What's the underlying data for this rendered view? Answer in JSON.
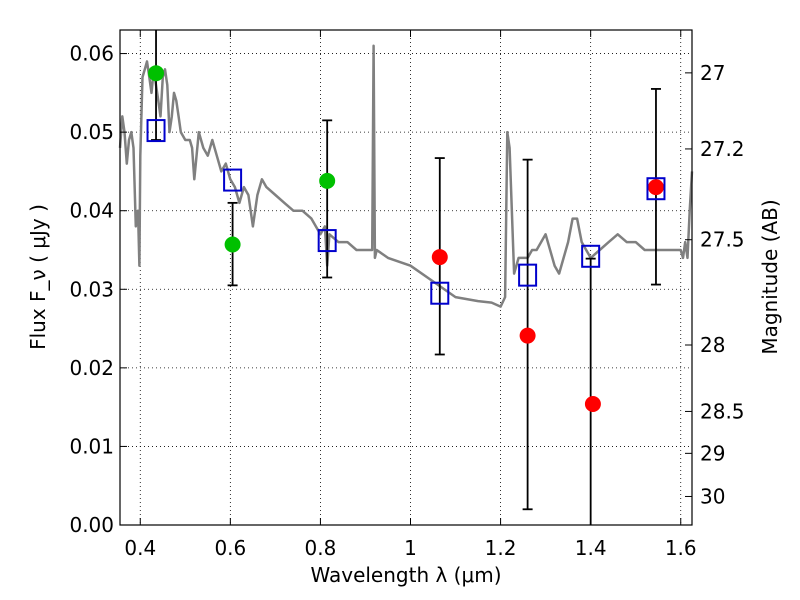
{
  "chart_data": {
    "type": "scatter",
    "xlabel": "Wavelength  λ (μm)",
    "ylabel": "Flux  F_ν  ( μJy )",
    "y2label": "Magnitude (AB)",
    "xlim": [
      0.355,
      1.625
    ],
    "ylim": [
      0.0,
      0.063
    ],
    "grid": true,
    "x_ticks": [
      0.4,
      0.6,
      0.8,
      1.0,
      1.2,
      1.4,
      1.6
    ],
    "x_tick_labels": [
      "0.4",
      "0.6",
      "0.8",
      "1",
      "1.2",
      "1.4",
      "1.6"
    ],
    "y_ticks": [
      0.0,
      0.01,
      0.02,
      0.03,
      0.04,
      0.05,
      0.06
    ],
    "y_tick_labels": [
      "0.00",
      "0.01",
      "0.02",
      "0.03",
      "0.04",
      "0.05",
      "0.06"
    ],
    "y2_tick_labels": [
      "27",
      "27.2",
      "27.5",
      "28",
      "28.5",
      "29",
      "30"
    ],
    "colors": {
      "template": "#808080",
      "green": "#00c000",
      "red": "#ff0000",
      "model": "#0000cc",
      "errorbar": "#000000"
    },
    "template_spectrum": {
      "x": [
        0.355,
        0.36,
        0.365,
        0.37,
        0.375,
        0.38,
        0.385,
        0.39,
        0.395,
        0.398,
        0.4,
        0.405,
        0.41,
        0.415,
        0.42,
        0.425,
        0.43,
        0.435,
        0.44,
        0.445,
        0.45,
        0.455,
        0.46,
        0.465,
        0.47,
        0.475,
        0.48,
        0.485,
        0.49,
        0.5,
        0.51,
        0.515,
        0.52,
        0.53,
        0.54,
        0.55,
        0.56,
        0.57,
        0.58,
        0.59,
        0.6,
        0.61,
        0.62,
        0.63,
        0.64,
        0.65,
        0.66,
        0.67,
        0.68,
        0.7,
        0.72,
        0.74,
        0.76,
        0.78,
        0.8,
        0.81,
        0.815,
        0.82,
        0.84,
        0.86,
        0.88,
        0.9,
        0.915,
        0.918,
        0.921,
        0.925,
        0.95,
        1.0,
        1.05,
        1.1,
        1.15,
        1.18,
        1.2,
        1.21,
        1.215,
        1.22,
        1.23,
        1.24,
        1.25,
        1.26,
        1.27,
        1.28,
        1.3,
        1.32,
        1.33,
        1.34,
        1.35,
        1.36,
        1.37,
        1.38,
        1.4,
        1.42,
        1.44,
        1.46,
        1.48,
        1.5,
        1.52,
        1.54,
        1.56,
        1.58,
        1.6,
        1.605,
        1.61,
        1.615,
        1.62,
        1.625
      ],
      "y": [
        0.048,
        0.052,
        0.05,
        0.046,
        0.049,
        0.05,
        0.048,
        0.038,
        0.04,
        0.033,
        0.047,
        0.057,
        0.058,
        0.059,
        0.057,
        0.055,
        0.058,
        0.056,
        0.054,
        0.052,
        0.057,
        0.058,
        0.056,
        0.05,
        0.052,
        0.055,
        0.054,
        0.052,
        0.05,
        0.049,
        0.049,
        0.048,
        0.044,
        0.05,
        0.048,
        0.047,
        0.049,
        0.047,
        0.045,
        0.046,
        0.044,
        0.043,
        0.041,
        0.043,
        0.042,
        0.038,
        0.042,
        0.044,
        0.043,
        0.042,
        0.041,
        0.04,
        0.04,
        0.039,
        0.037,
        0.038,
        0.033,
        0.037,
        0.036,
        0.036,
        0.035,
        0.035,
        0.035,
        0.061,
        0.034,
        0.035,
        0.034,
        0.033,
        0.031,
        0.029,
        0.0285,
        0.0283,
        0.0278,
        0.029,
        0.05,
        0.048,
        0.032,
        0.034,
        0.034,
        0.034,
        0.035,
        0.035,
        0.037,
        0.033,
        0.032,
        0.034,
        0.036,
        0.039,
        0.039,
        0.036,
        0.034,
        0.035,
        0.036,
        0.037,
        0.036,
        0.036,
        0.035,
        0.035,
        0.035,
        0.035,
        0.035,
        0.034,
        0.036,
        0.034,
        0.04,
        0.045
      ]
    },
    "error_bars": [
      {
        "x": 0.435,
        "y_low": 0.049,
        "y_high": 0.063
      },
      {
        "x": 0.605,
        "y_low": 0.0305,
        "y_high": 0.041
      },
      {
        "x": 0.815,
        "y_low": 0.0315,
        "y_high": 0.0515
      },
      {
        "x": 1.065,
        "y_low": 0.0217,
        "y_high": 0.0467
      },
      {
        "x": 1.26,
        "y_low": 0.002,
        "y_high": 0.0465
      },
      {
        "x": 1.4,
        "y_low": 0.0,
        "y_high": 0.0339
      },
      {
        "x": 1.545,
        "y_low": 0.0306,
        "y_high": 0.0555
      }
    ],
    "series": [
      {
        "marker": "green-circle",
        "x": [
          0.435,
          0.605,
          0.815
        ],
        "y": [
          0.0575,
          0.0357,
          0.0438
        ]
      },
      {
        "marker": "red-circle",
        "x": [
          1.065,
          1.26,
          1.405,
          1.545
        ],
        "y": [
          0.0341,
          0.0241,
          0.0154,
          0.043
        ]
      },
      {
        "marker": "blue-open-square",
        "x": [
          0.435,
          0.605,
          0.815,
          1.065,
          1.26,
          1.4,
          1.545
        ],
        "y": [
          0.0502,
          0.0439,
          0.0362,
          0.0295,
          0.0318,
          0.0342,
          0.0428
        ]
      }
    ]
  }
}
